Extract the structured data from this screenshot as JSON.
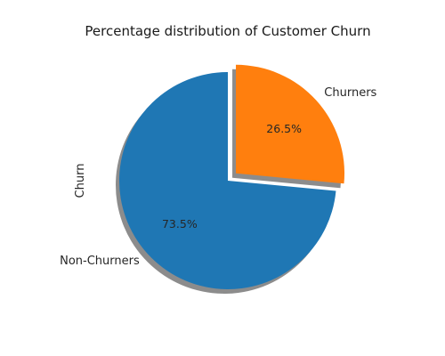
{
  "chart_data": {
    "type": "pie",
    "title": "Percentage distribution of Customer Churn",
    "ylabel": "Churn",
    "slices": [
      {
        "label": "Non-Churners",
        "value": 73.5,
        "pct_label": "73.5%",
        "color": "#1f77b4",
        "explode": 0
      },
      {
        "label": "Churners",
        "value": 26.5,
        "pct_label": "26.5%",
        "color": "#ff7f0e",
        "explode": 0.1
      }
    ],
    "start_angle_deg": 90,
    "shadow": true
  }
}
